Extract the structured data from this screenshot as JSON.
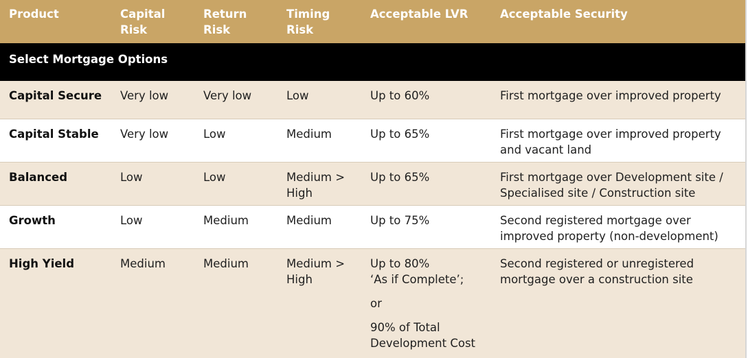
{
  "headers": {
    "product": "Product",
    "capital_risk": [
      "Capital",
      "Risk"
    ],
    "return_risk": [
      "Return",
      "Risk"
    ],
    "timing_risk": [
      "Timing",
      "Risk"
    ],
    "acceptable_lvr": "Acceptable LVR",
    "acceptable_security": "Acceptable Security"
  },
  "section_title": "Select Mortgage Options",
  "rows": [
    {
      "product": "Capital Secure",
      "capital_risk": "Very low",
      "return_risk": "Very low",
      "timing_risk": [
        "Low"
      ],
      "lvr": [
        "Up to 60%"
      ],
      "security": [
        "First mortgage over improved property"
      ]
    },
    {
      "product": "Capital Stable",
      "capital_risk": "Very low",
      "return_risk": "Low",
      "timing_risk": [
        "Medium"
      ],
      "lvr": [
        "Up to 65%"
      ],
      "security": [
        "First mortgage over improved property",
        "and vacant land"
      ]
    },
    {
      "product": "Balanced",
      "capital_risk": "Low",
      "return_risk": "Low",
      "timing_risk": [
        "Medium >",
        "High"
      ],
      "lvr": [
        "Up to 65%"
      ],
      "security": [
        "First mortgage over Development site /",
        "Specialised site / Construction site"
      ]
    },
    {
      "product": "Growth",
      "capital_risk": "Low",
      "return_risk": "Medium",
      "timing_risk": [
        "Medium"
      ],
      "lvr": [
        "Up to 75%"
      ],
      "security": [
        "Second registered mortgage over",
        "improved property (non-development)"
      ]
    },
    {
      "product": "High Yield",
      "capital_risk": "Medium",
      "return_risk": "Medium",
      "timing_risk": [
        "Medium >",
        "High"
      ],
      "lvr": [
        "Up to 80%",
        "‘As if Complete’;",
        "or",
        "90% of Total",
        "Development Cost"
      ],
      "security": [
        "Second registered or unregistered",
        "mortgage over a construction site"
      ]
    }
  ],
  "colors": {
    "header_bg": "#c9a566",
    "section_bg": "#000000",
    "shaded_row": "#f1e6d7",
    "white_row": "#ffffff"
  }
}
